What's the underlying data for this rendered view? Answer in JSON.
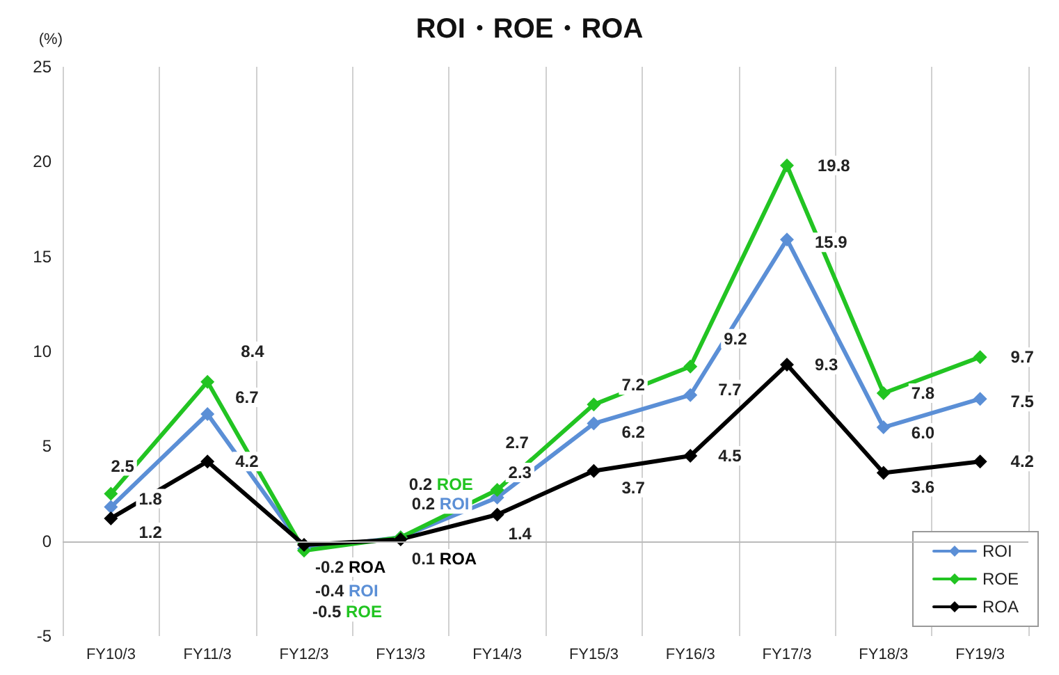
{
  "chart_data": {
    "type": "line",
    "title": "ROI・ROE・ROA",
    "ylabel": "(%)",
    "categories": [
      "FY10/3",
      "FY11/3",
      "FY12/3",
      "FY13/3",
      "FY14/3",
      "FY15/3",
      "FY16/3",
      "FY17/3",
      "FY18/3",
      "FY19/3"
    ],
    "series": [
      {
        "name": "ROI",
        "color": "#5b8fd6",
        "values": [
          1.8,
          6.7,
          -0.4,
          0.2,
          2.3,
          6.2,
          7.7,
          15.9,
          6.0,
          7.5
        ],
        "value_labels": [
          "1.8",
          "6.7",
          "-0.4 ROI",
          "0.2 ROI",
          "2.3",
          "6.2",
          "7.7",
          "15.9",
          "6.0",
          "7.5"
        ]
      },
      {
        "name": "ROE",
        "color": "#22c422",
        "values": [
          2.5,
          8.4,
          -0.5,
          0.2,
          2.7,
          7.2,
          9.2,
          19.8,
          7.8,
          9.7
        ],
        "value_labels": [
          "2.5",
          "8.4",
          "-0.5 ROE",
          "0.2 ROE",
          "2.7",
          "7.2",
          "9.2",
          "19.8",
          "7.8",
          "9.7"
        ]
      },
      {
        "name": "ROA",
        "color": "#000000",
        "values": [
          1.2,
          4.2,
          -0.2,
          0.1,
          1.4,
          3.7,
          4.5,
          9.3,
          3.6,
          4.2
        ],
        "value_labels": [
          "1.2",
          "4.2",
          "-0.2 ROA",
          "0.1 ROA",
          "1.4",
          "3.7",
          "4.5",
          "9.3",
          "3.6",
          "4.2"
        ]
      }
    ],
    "ylim": [
      -5,
      25
    ],
    "yticks": [
      -5,
      0,
      5,
      10,
      15,
      20,
      25
    ],
    "grid": "x",
    "legend": "bottom right",
    "marker": "diamond",
    "line_style": "solid"
  }
}
